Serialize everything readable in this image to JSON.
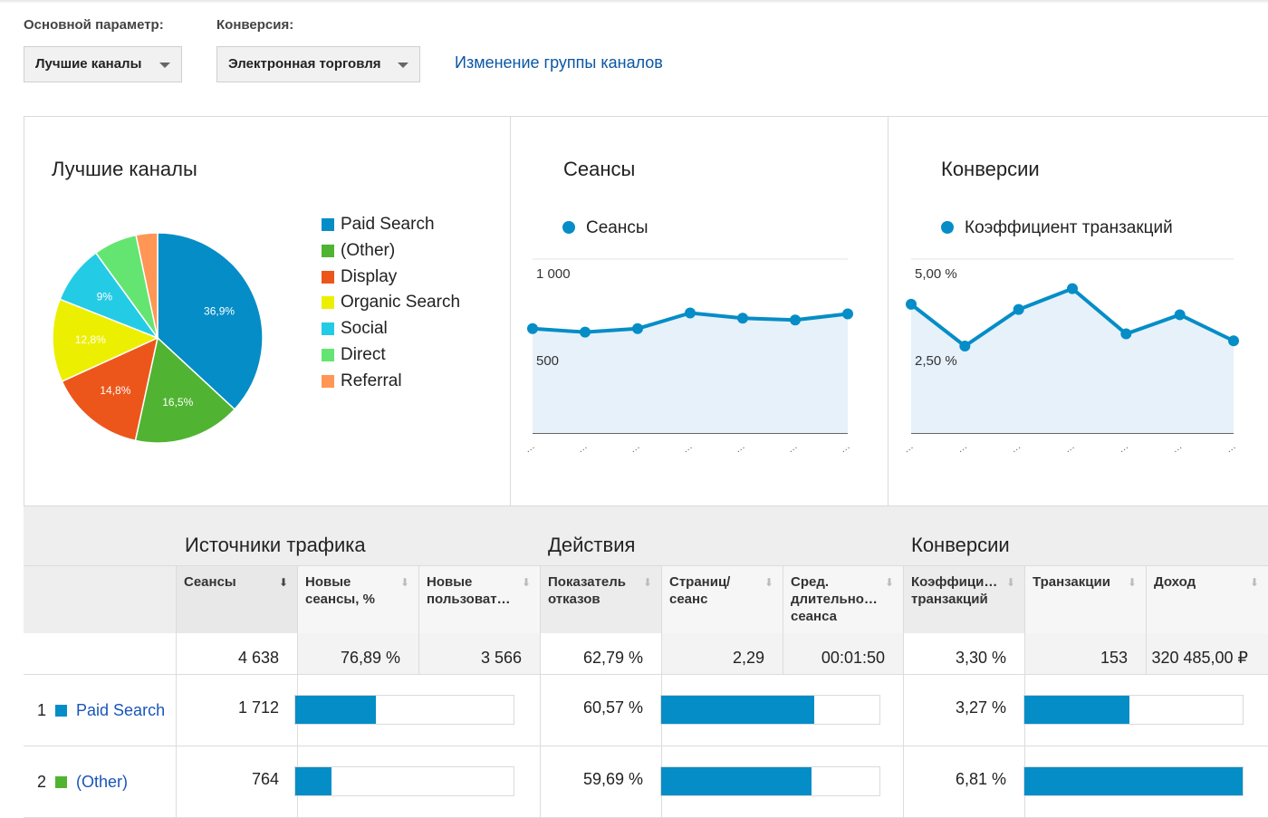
{
  "controls": {
    "primary_label": "Основной параметр:",
    "primary_value": "Лучшие каналы",
    "conversion_label": "Конверсия:",
    "conversion_value": "Электронная торговля",
    "change_link": "Изменение группы каналов"
  },
  "panels": {
    "pie_title": "Лучшие каналы",
    "sessions_title": "Сеансы",
    "sessions_series": "Сеансы",
    "conv_title": "Конверсии",
    "conv_series": "Коэффициент транзакций"
  },
  "chart_data": [
    {
      "type": "pie",
      "title": "Лучшие каналы",
      "slices": [
        {
          "label": "Paid Search",
          "value": 36.9,
          "text": "36,9%",
          "color": "#058dc7"
        },
        {
          "label": "(Other)",
          "value": 16.5,
          "text": "16,5%",
          "color": "#50b432"
        },
        {
          "label": "Display",
          "value": 14.8,
          "text": "14,8%",
          "color": "#ed561b"
        },
        {
          "label": "Organic Search",
          "value": 12.8,
          "text": "12,8%",
          "color": "#edef00"
        },
        {
          "label": "Social",
          "value": 9.0,
          "text": "9%",
          "color": "#24cbe5"
        },
        {
          "label": "Direct",
          "value": 6.7,
          "text": "",
          "color": "#64e572"
        },
        {
          "label": "Referral",
          "value": 3.3,
          "text": "",
          "color": "#ff9655"
        }
      ]
    },
    {
      "type": "area",
      "title": "Сеансы",
      "series": [
        {
          "name": "Сеансы",
          "values": [
            600,
            580,
            600,
            690,
            660,
            650,
            685
          ]
        }
      ],
      "ylim": [
        0,
        1000
      ],
      "yticks": [
        {
          "value": 1000,
          "label": "1 000"
        },
        {
          "value": 500,
          "label": "500"
        }
      ],
      "xticks": [
        "…",
        "…",
        "…",
        "…",
        "…",
        "…",
        "…"
      ]
    },
    {
      "type": "area",
      "title": "Конверсии",
      "series": [
        {
          "name": "Коэффициент транзакций",
          "values": [
            3.7,
            2.5,
            3.55,
            4.15,
            2.85,
            3.4,
            2.65
          ]
        }
      ],
      "ylim": [
        0,
        5
      ],
      "yticks": [
        {
          "value": 5,
          "label": "5,00 %"
        },
        {
          "value": 2.5,
          "label": "2,50 %"
        }
      ],
      "xticks": [
        "…",
        "…",
        "…",
        "…",
        "…",
        "…",
        "…"
      ]
    }
  ],
  "table": {
    "groups": [
      "Источники трафика",
      "Действия",
      "Конверсии"
    ],
    "columns": [
      "Сеансы",
      "Новые сеансы, %",
      "Новые пользоват…",
      "Показатель отказов",
      "Страниц/ сеанс",
      "Сред. длительно… сеанса",
      "Коэффици… транзакций",
      "Транзакции",
      "Доход"
    ],
    "totals": [
      "4 638",
      "76,89 %",
      "3 566",
      "62,79 %",
      "2,29",
      "00:01:50",
      "3,30 %",
      "153",
      "320 485,00 ₽"
    ],
    "rows": [
      {
        "index": "1",
        "name": "Paid Search",
        "color": "#058dc7",
        "sessions": "1 712",
        "sessions_share": 0.369,
        "bounce": "60,57 %",
        "bounce_share": 0.7,
        "conv": "3,27 %",
        "conv_share": 0.48
      },
      {
        "index": "2",
        "name": "(Other)",
        "color": "#50b432",
        "sessions": "764",
        "sessions_share": 0.165,
        "bounce": "59,69 %",
        "bounce_share": 0.69,
        "conv": "6,81 %",
        "conv_share": 1.0
      }
    ]
  }
}
